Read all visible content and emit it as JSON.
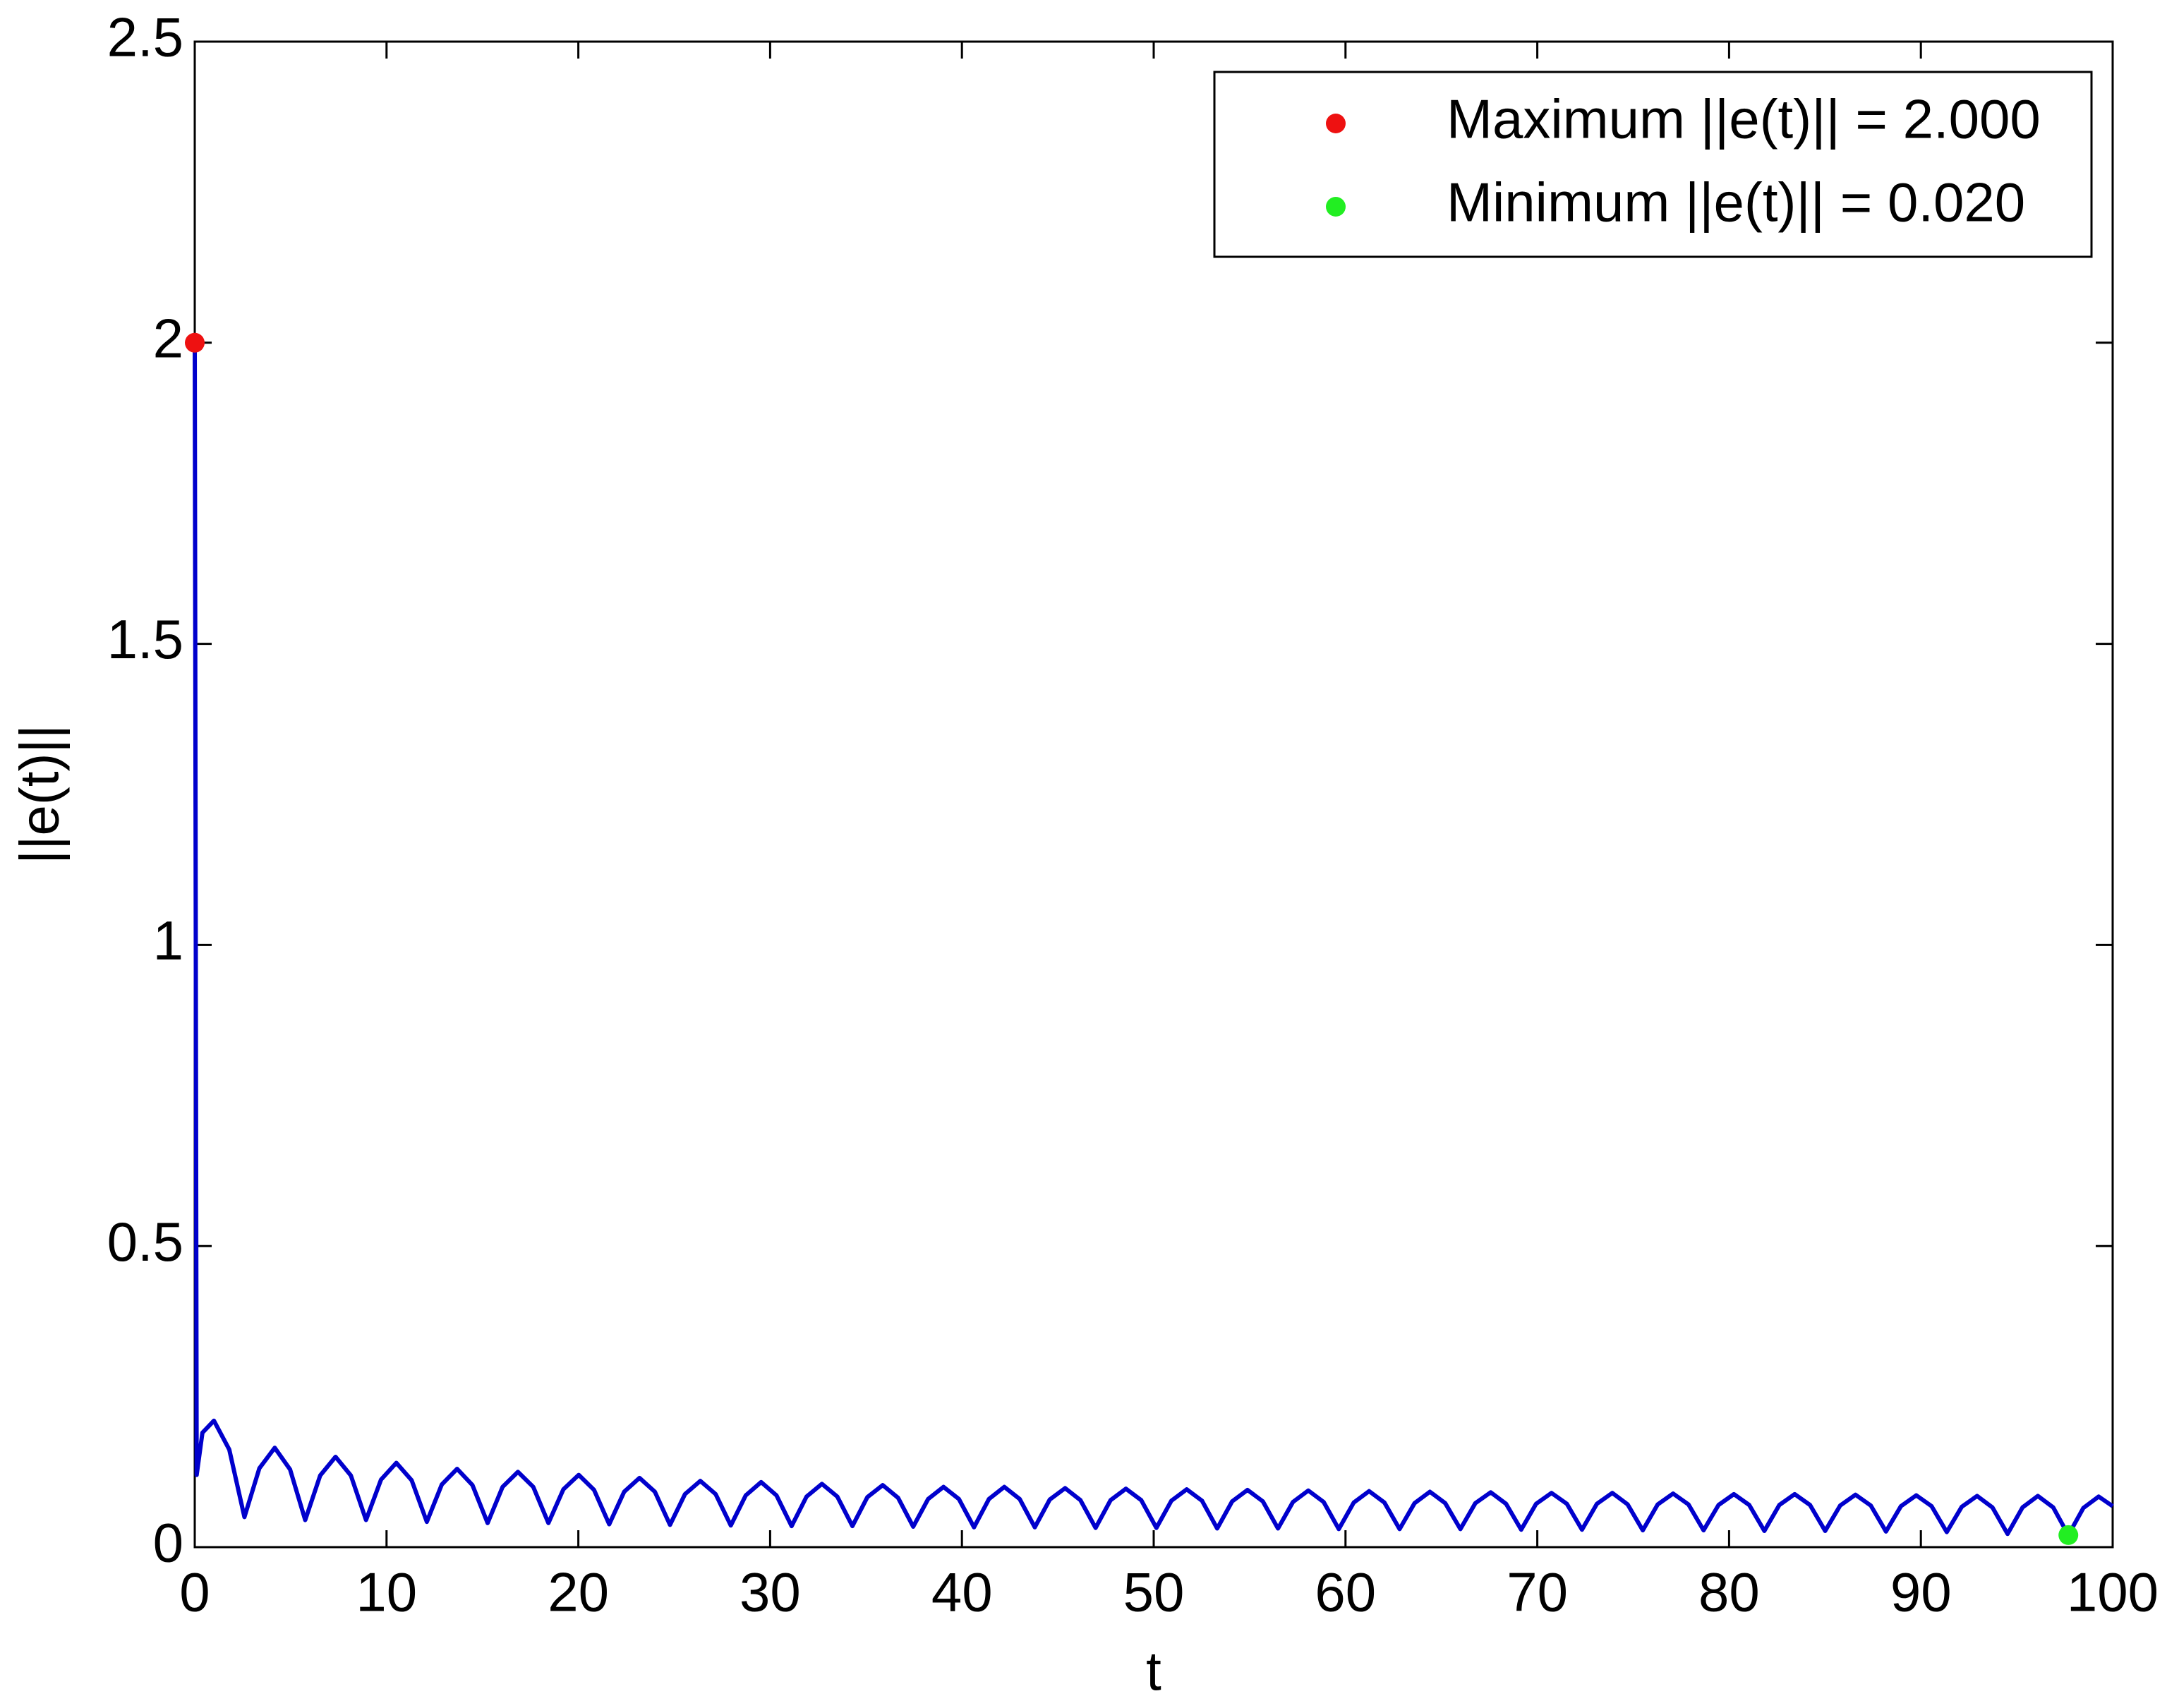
{
  "chart_data": {
    "type": "line",
    "xlabel": "t",
    "ylabel": "||e(t)||",
    "xlim": [
      0,
      100
    ],
    "ylim": [
      0,
      2.5
    ],
    "xticks": [
      0,
      10,
      20,
      30,
      40,
      50,
      60,
      70,
      80,
      90,
      100
    ],
    "yticks": [
      0,
      0.5,
      1,
      1.5,
      2,
      2.5
    ],
    "legend": "upper right",
    "series": [
      {
        "color": "#0000cc",
        "x": [
          0,
          0.1,
          0.4,
          1,
          1.8,
          2.59,
          3.37,
          4.17,
          4.97,
          5.76,
          6.54,
          7.34,
          8.14,
          8.93,
          9.71,
          10.51,
          11.31,
          12.1,
          12.88,
          13.68,
          14.48,
          15.27,
          16.05,
          16.85,
          17.65,
          18.44,
          19.22,
          20.02,
          20.82,
          21.61,
          22.39,
          23.19,
          23.99,
          24.78,
          25.56,
          26.36,
          27.16,
          27.95,
          28.73,
          29.53,
          30.33,
          31.12,
          31.9,
          32.7,
          33.5,
          34.29,
          35.07,
          35.87,
          36.67,
          37.46,
          38.24,
          39.04,
          39.84,
          40.63,
          41.41,
          42.21,
          43.01,
          43.8,
          44.58,
          45.38,
          46.18,
          46.97,
          47.75,
          48.55,
          49.35,
          50.14,
          50.92,
          51.72,
          52.52,
          53.31,
          54.09,
          54.89,
          55.69,
          56.48,
          57.26,
          58.06,
          58.86,
          59.65,
          60.43,
          61.23,
          62.03,
          62.82,
          63.6,
          64.4,
          65.2,
          65.99,
          66.77,
          67.57,
          68.37,
          69.16,
          69.94,
          70.74,
          71.54,
          72.33,
          73.11,
          73.91,
          74.71,
          75.5,
          76.28,
          77.08,
          77.88,
          78.67,
          79.45,
          80.25,
          81.05,
          81.84,
          82.62,
          83.42,
          84.22,
          85.01,
          85.79,
          86.59,
          87.39,
          88.18,
          88.96,
          89.76,
          90.56,
          91.35,
          92.13,
          92.93,
          93.73,
          94.52,
          95.3,
          96.1,
          96.9,
          97.69,
          98.47,
          99.27,
          100
        ],
        "values": [
          2,
          0.12,
          0.19,
          0.21,
          0.162,
          0.05,
          0.131,
          0.165,
          0.129,
          0.045,
          0.119,
          0.15,
          0.119,
          0.045,
          0.112,
          0.14,
          0.111,
          0.042,
          0.104,
          0.13,
          0.103,
          0.04,
          0.1,
          0.125,
          0.1,
          0.04,
          0.096,
          0.12,
          0.095,
          0.038,
          0.092,
          0.115,
          0.092,
          0.037,
          0.088,
          0.11,
          0.088,
          0.036,
          0.086,
          0.108,
          0.086,
          0.035,
          0.084,
          0.105,
          0.084,
          0.035,
          0.083,
          0.103,
          0.082,
          0.034,
          0.08,
          0.1,
          0.08,
          0.033,
          0.08,
          0.1,
          0.08,
          0.033,
          0.079,
          0.098,
          0.078,
          0.032,
          0.078,
          0.097,
          0.078,
          0.032,
          0.077,
          0.096,
          0.077,
          0.031,
          0.076,
          0.095,
          0.076,
          0.031,
          0.075,
          0.094,
          0.075,
          0.03,
          0.074,
          0.093,
          0.074,
          0.03,
          0.073,
          0.092,
          0.073,
          0.03,
          0.073,
          0.091,
          0.072,
          0.029,
          0.072,
          0.09,
          0.072,
          0.029,
          0.072,
          0.09,
          0.071,
          0.028,
          0.071,
          0.089,
          0.071,
          0.028,
          0.07,
          0.088,
          0.07,
          0.027,
          0.07,
          0.088,
          0.07,
          0.027,
          0.069,
          0.087,
          0.069,
          0.026,
          0.068,
          0.086,
          0.068,
          0.025,
          0.067,
          0.085,
          0.066,
          0.022,
          0.066,
          0.085,
          0.066,
          0.02,
          0.065,
          0.084,
          0.068
        ]
      },
      {
        "name": "Maximum ||e(t)|| = 2.000",
        "color": "#ee1111",
        "x": [
          0
        ],
        "values": [
          2
        ]
      },
      {
        "name": "Minimum ||e(t)|| = 0.020",
        "color": "#22ee22",
        "x": [
          97.69
        ],
        "values": [
          0.02
        ]
      }
    ]
  }
}
